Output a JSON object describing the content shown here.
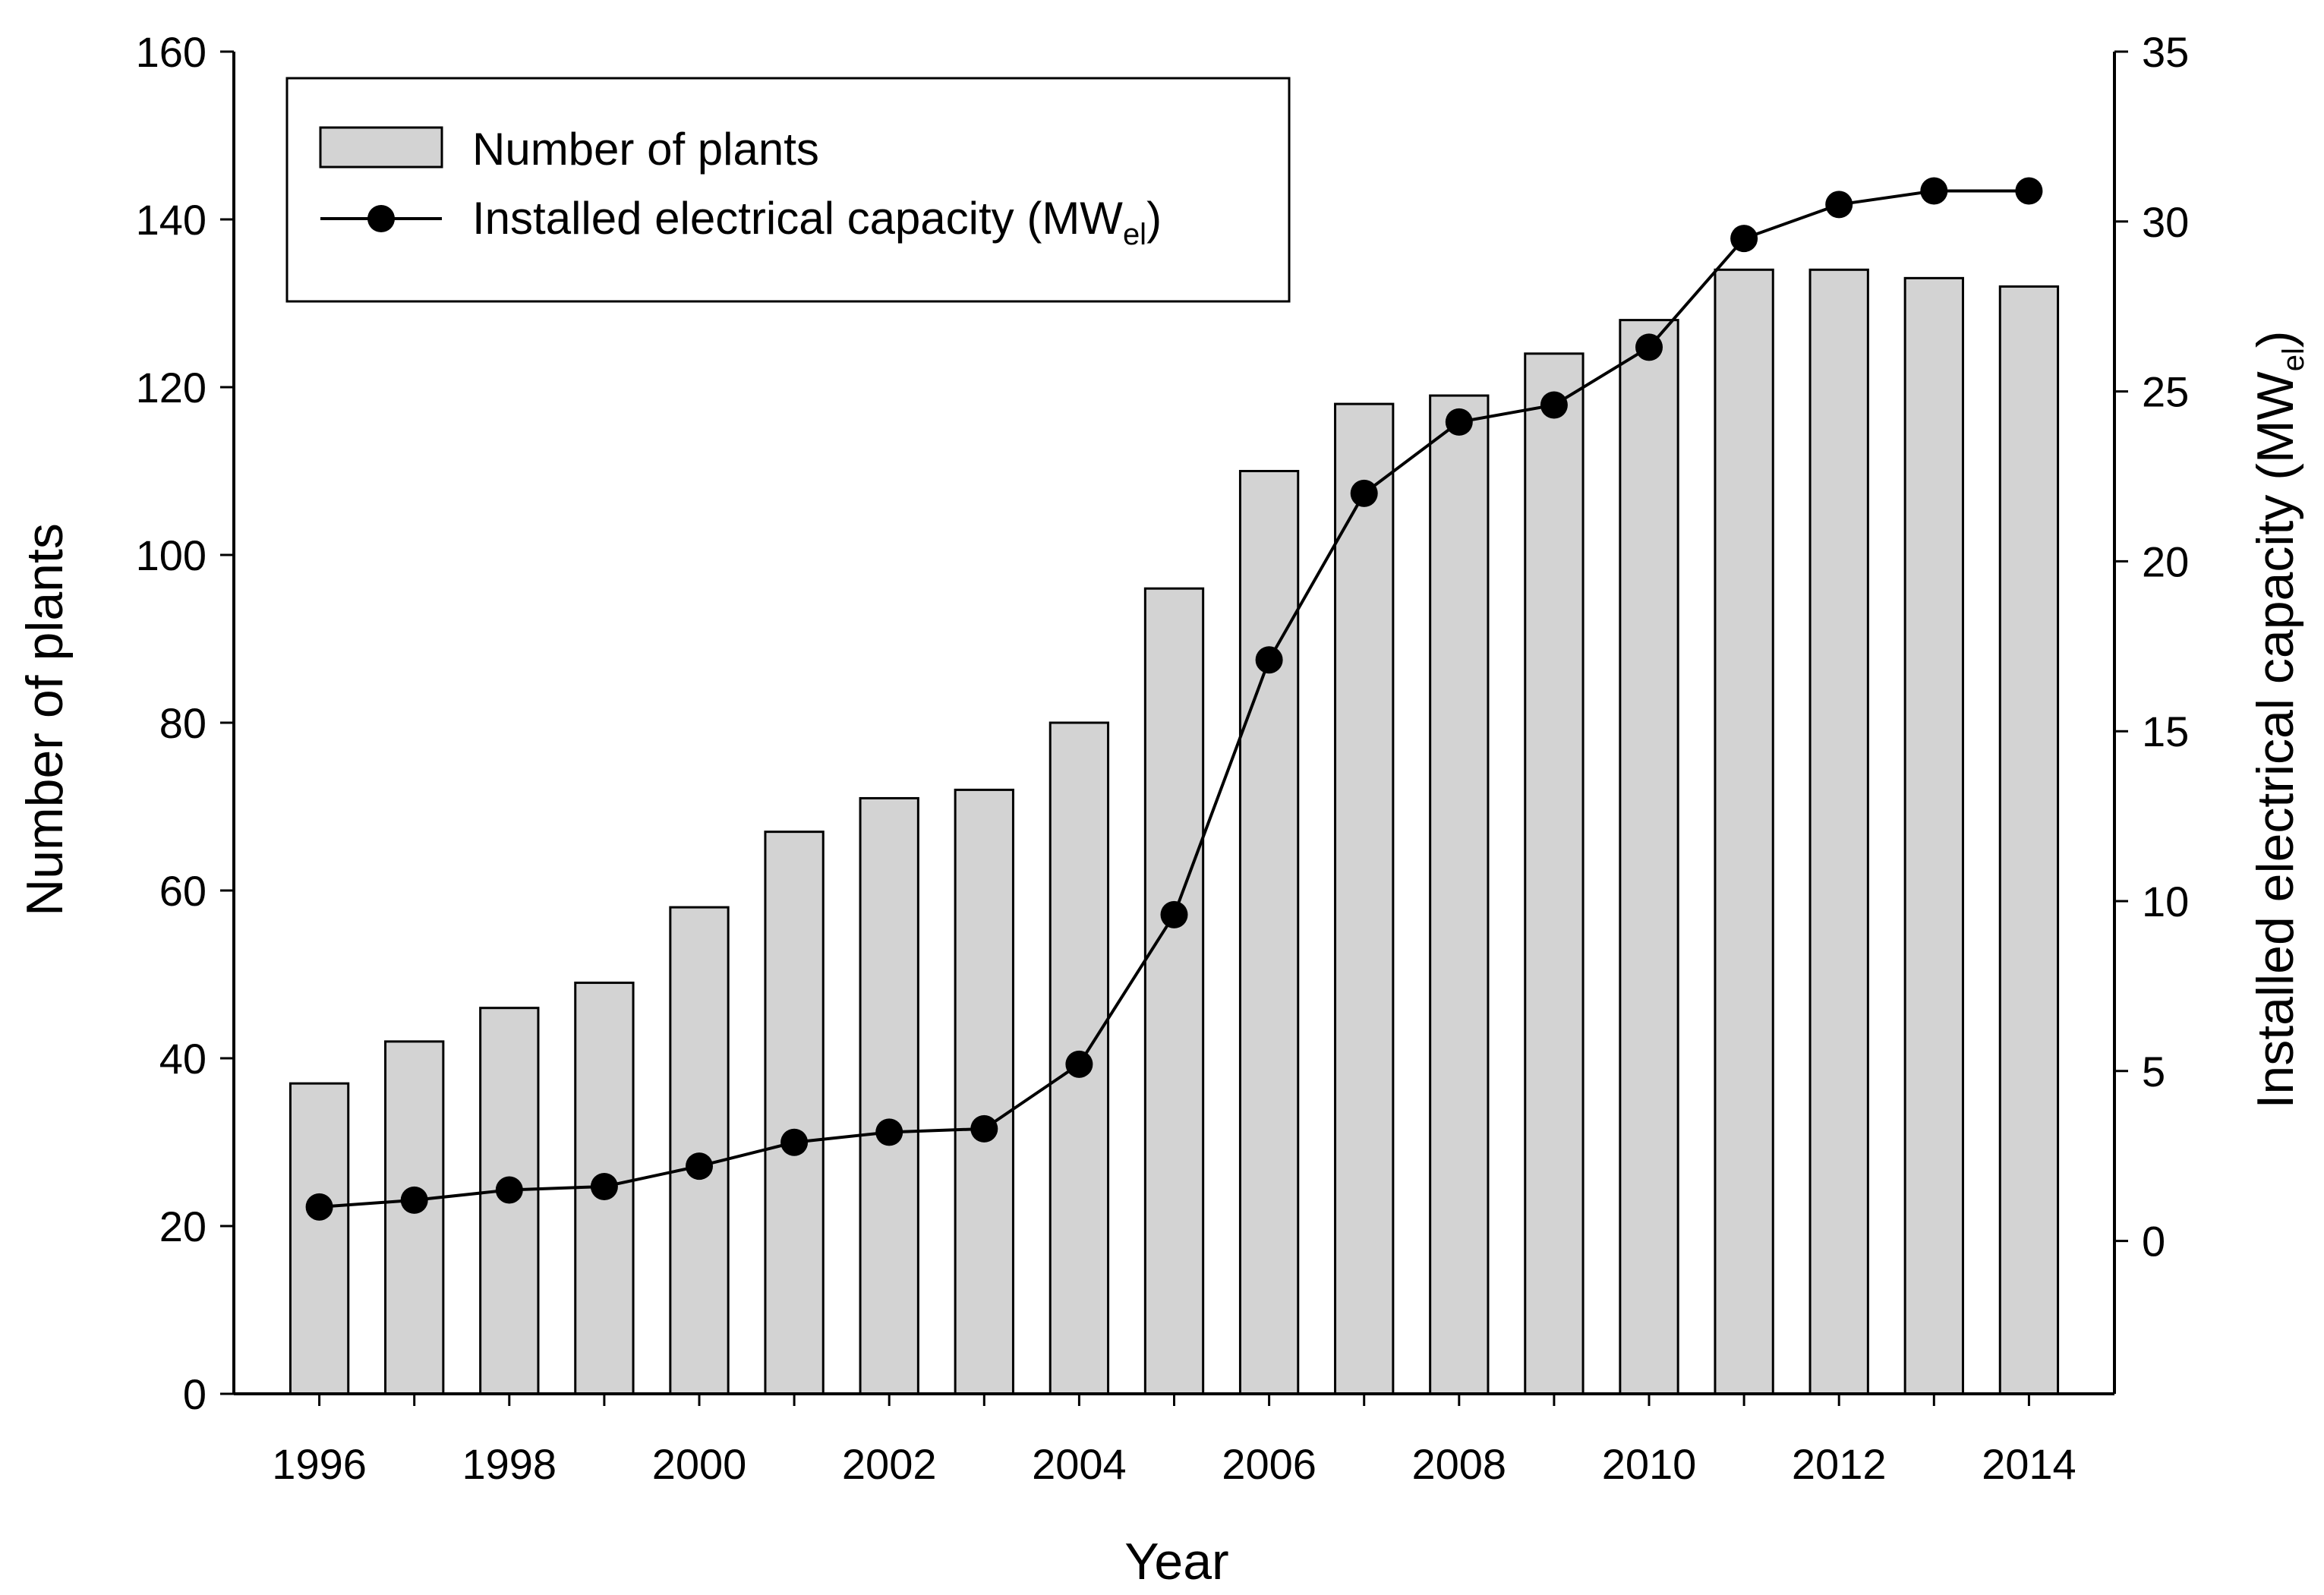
{
  "chart_data": {
    "type": "bar+line",
    "x_label": "Year",
    "y_label": "Number of plants",
    "y2_label_main": "Installed electrical capacity (MW",
    "y2_label_sub": "el",
    "y2_label_close": ")",
    "categories": [
      1996,
      1997,
      1998,
      1999,
      2000,
      2001,
      2002,
      2003,
      2004,
      2005,
      2006,
      2007,
      2008,
      2009,
      2010,
      2011,
      2012,
      2013,
      2014
    ],
    "x_tick_labels": [
      "1996",
      "1998",
      "2000",
      "2002",
      "2004",
      "2006",
      "2008",
      "2010",
      "2012",
      "2014"
    ],
    "x_tick_years": [
      1996,
      1998,
      2000,
      2002,
      2004,
      2006,
      2008,
      2010,
      2012,
      2014
    ],
    "ylim": [
      0,
      160
    ],
    "y_ticks": [
      0,
      20,
      40,
      60,
      80,
      100,
      120,
      140,
      160
    ],
    "y2lim": [
      -4.5,
      35
    ],
    "y2_ticks": [
      0,
      5,
      10,
      15,
      20,
      25,
      30,
      35
    ],
    "series": [
      {
        "name": "Number of plants",
        "kind": "bar",
        "axis": "left",
        "color": "#d3d3d3",
        "values": [
          37,
          42,
          46,
          49,
          58,
          67,
          71,
          72,
          80,
          96,
          110,
          118,
          119,
          124,
          128,
          134,
          134,
          133,
          132
        ]
      },
      {
        "name": "Installed electrical capacity (MW",
        "name_sub": "el",
        "name_close": ")",
        "kind": "line",
        "axis": "right",
        "color": "#000000",
        "values": [
          1.0,
          1.2,
          1.5,
          1.6,
          2.2,
          2.9,
          3.2,
          3.3,
          5.2,
          9.6,
          17.1,
          22.0,
          24.1,
          24.6,
          26.3,
          29.5,
          30.5,
          30.9,
          30.9
        ]
      }
    ],
    "legend_position": "top-left"
  }
}
